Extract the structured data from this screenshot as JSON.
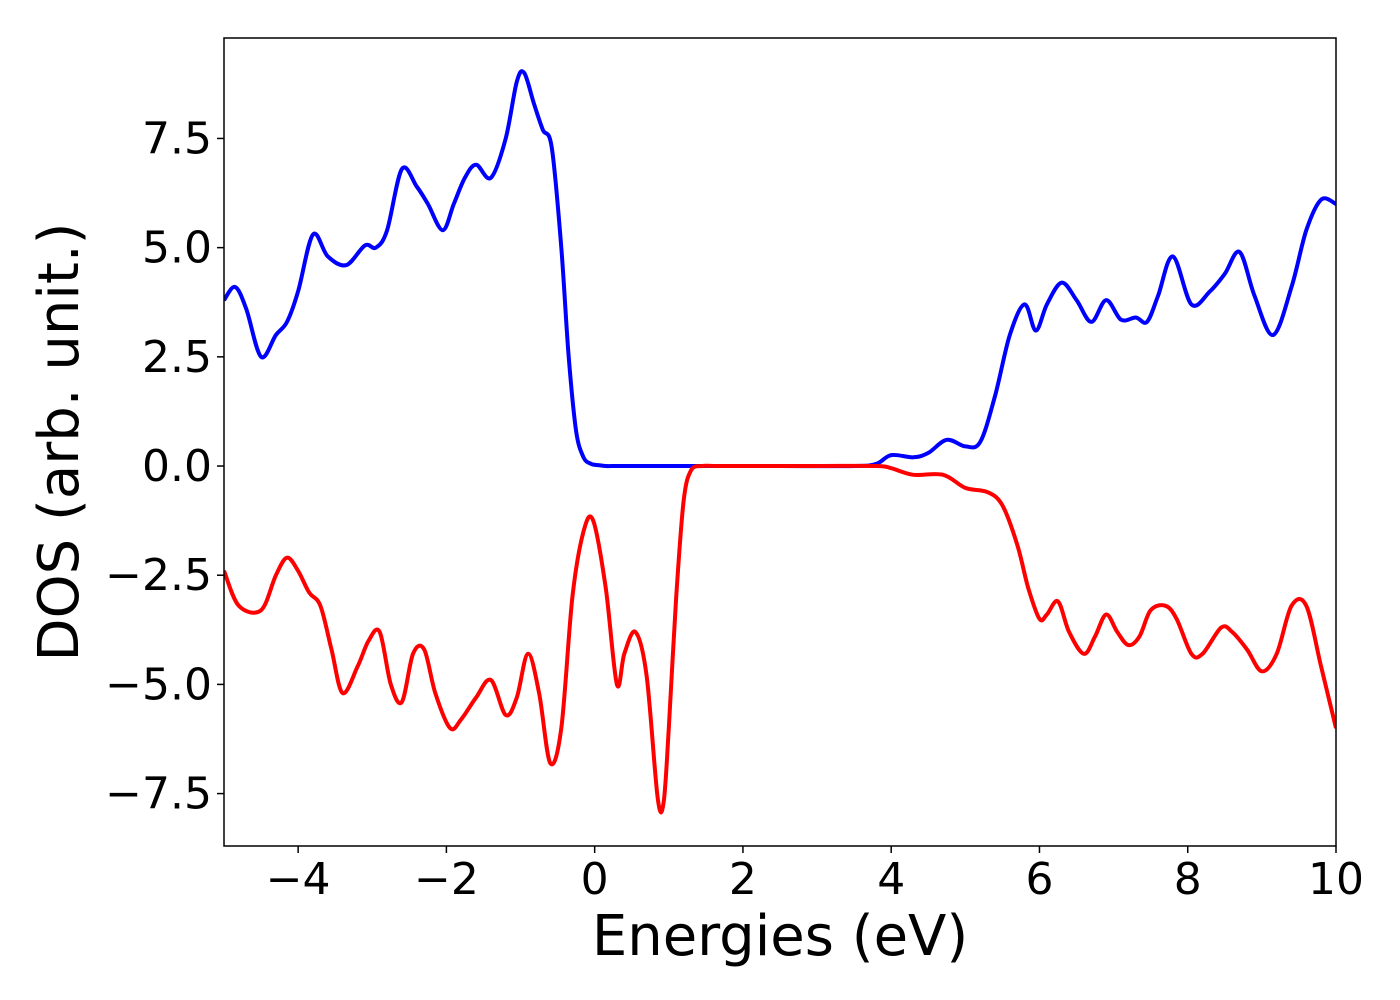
{
  "chart_data": {
    "type": "line",
    "title": "",
    "xlabel": "Energies (eV)",
    "ylabel": "DOS (arb. unit.)",
    "xlim": [
      -5,
      10
    ],
    "ylim": [
      -8.7,
      9.8
    ],
    "xticks": [
      -4,
      -2,
      0,
      2,
      4,
      6,
      8,
      10
    ],
    "xtick_labels": [
      "−4",
      "−2",
      "0",
      "2",
      "4",
      "6",
      "8",
      "10"
    ],
    "yticks": [
      -7.5,
      -5.0,
      -2.5,
      0.0,
      2.5,
      5.0,
      7.5
    ],
    "ytick_labels": [
      "−7.5",
      "−5.0",
      "−2.5",
      "0.0",
      "2.5",
      "5.0",
      "7.5"
    ],
    "grid": false,
    "legend": "none",
    "series": [
      {
        "color": "#0000ff",
        "x": [
          -5.0,
          -4.85,
          -4.7,
          -4.5,
          -4.3,
          -4.15,
          -4.0,
          -3.8,
          -3.6,
          -3.35,
          -3.1,
          -2.95,
          -2.8,
          -2.6,
          -2.4,
          -2.25,
          -2.05,
          -1.9,
          -1.75,
          -1.6,
          -1.4,
          -1.2,
          -1.05,
          -0.95,
          -0.82,
          -0.7,
          -0.58,
          -0.45,
          -0.35,
          -0.25,
          -0.15,
          -0.05,
          0.05,
          0.15,
          0.3,
          0.6,
          1.5,
          2.5,
          3.5,
          3.8,
          4.0,
          4.3,
          4.5,
          4.75,
          5.0,
          5.2,
          5.4,
          5.6,
          5.8,
          5.95,
          6.1,
          6.3,
          6.5,
          6.7,
          6.9,
          7.1,
          7.3,
          7.45,
          7.6,
          7.8,
          8.05,
          8.3,
          8.5,
          8.7,
          8.9,
          9.15,
          9.4,
          9.6,
          9.8,
          10.0
        ],
        "y": [
          3.8,
          4.1,
          3.6,
          2.5,
          3.0,
          3.3,
          4.0,
          5.3,
          4.8,
          4.6,
          5.05,
          5.0,
          5.4,
          6.8,
          6.4,
          6.0,
          5.4,
          6.0,
          6.6,
          6.9,
          6.6,
          7.5,
          8.8,
          9.0,
          8.3,
          7.7,
          7.3,
          5.0,
          2.5,
          0.8,
          0.2,
          0.05,
          0.02,
          0.0,
          0.0,
          0.0,
          0.0,
          0.0,
          0.0,
          0.05,
          0.25,
          0.2,
          0.3,
          0.6,
          0.45,
          0.55,
          1.6,
          3.0,
          3.7,
          3.1,
          3.7,
          4.2,
          3.8,
          3.3,
          3.8,
          3.35,
          3.4,
          3.3,
          3.9,
          4.8,
          3.7,
          4.0,
          4.4,
          4.9,
          3.9,
          3.0,
          4.1,
          5.4,
          6.1,
          6.0
        ]
      },
      {
        "color": "#ff0000",
        "x": [
          -5.0,
          -4.8,
          -4.5,
          -4.3,
          -4.15,
          -4.0,
          -3.85,
          -3.7,
          -3.55,
          -3.4,
          -3.2,
          -3.05,
          -2.9,
          -2.75,
          -2.6,
          -2.45,
          -2.3,
          -2.15,
          -1.95,
          -1.8,
          -1.6,
          -1.4,
          -1.2,
          -1.05,
          -0.9,
          -0.75,
          -0.6,
          -0.45,
          -0.3,
          -0.15,
          -0.02,
          0.15,
          0.3,
          0.4,
          0.55,
          0.7,
          0.85,
          0.93,
          1.0,
          1.1,
          1.2,
          1.3,
          1.45,
          1.6,
          2.0,
          3.0,
          3.8,
          4.0,
          4.3,
          4.7,
          5.0,
          5.3,
          5.5,
          5.7,
          5.85,
          6.0,
          6.1,
          6.25,
          6.4,
          6.6,
          6.75,
          6.9,
          7.05,
          7.2,
          7.35,
          7.5,
          7.7,
          7.85,
          8.05,
          8.2,
          8.45,
          8.6,
          8.8,
          9.0,
          9.2,
          9.4,
          9.6,
          9.8,
          10.0
        ],
        "y": [
          -2.4,
          -3.2,
          -3.3,
          -2.5,
          -2.1,
          -2.4,
          -2.9,
          -3.2,
          -4.2,
          -5.2,
          -4.6,
          -4.0,
          -3.8,
          -5.0,
          -5.4,
          -4.3,
          -4.2,
          -5.2,
          -6.0,
          -5.8,
          -5.3,
          -4.9,
          -5.7,
          -5.3,
          -4.3,
          -5.2,
          -6.8,
          -6.0,
          -3.0,
          -1.5,
          -1.25,
          -2.8,
          -5.0,
          -4.3,
          -3.8,
          -4.8,
          -7.6,
          -7.7,
          -6.0,
          -3.0,
          -0.8,
          -0.1,
          0.0,
          0.0,
          0.0,
          0.0,
          0.0,
          -0.05,
          -0.2,
          -0.2,
          -0.5,
          -0.6,
          -0.9,
          -1.8,
          -2.8,
          -3.5,
          -3.4,
          -3.1,
          -3.8,
          -4.3,
          -3.9,
          -3.4,
          -3.8,
          -4.1,
          -3.9,
          -3.3,
          -3.2,
          -3.5,
          -4.3,
          -4.3,
          -3.7,
          -3.8,
          -4.2,
          -4.7,
          -4.3,
          -3.2,
          -3.2,
          -4.6,
          -6.0
        ]
      }
    ]
  }
}
